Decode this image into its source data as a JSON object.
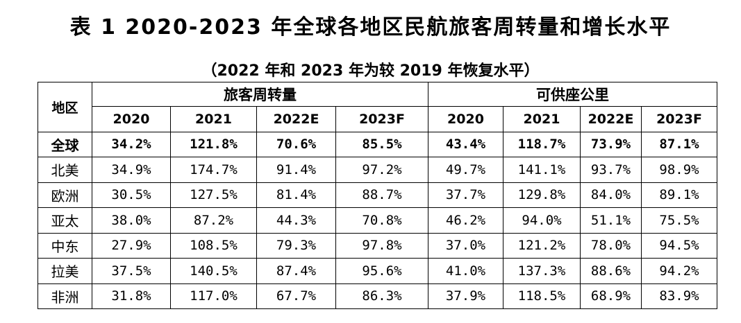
{
  "title": "表 1 2020-2023 年全球各地区民航旅客周转量和增长水平",
  "subtitle": "（2022 年和 2023 年为较 2019 年恢复水平）",
  "table": {
    "region_header": "地区",
    "group1": "旅客周转量",
    "group2": "可供座公里",
    "years": [
      "2020",
      "2021",
      "2022E",
      "2023F",
      "2020",
      "2021",
      "2022E",
      "2023F"
    ],
    "rows": [
      {
        "region": "全球",
        "values": [
          "34.2%",
          "121.8%",
          "70.6%",
          "85.5%",
          "43.4%",
          "118.7%",
          "73.9%",
          "87.1%"
        ],
        "bold": true
      },
      {
        "region": "北美",
        "values": [
          "34.9%",
          "174.7%",
          "91.4%",
          "97.2%",
          "49.7%",
          "141.1%",
          "93.7%",
          "98.9%"
        ]
      },
      {
        "region": "欧洲",
        "values": [
          "30.5%",
          "127.5%",
          "81.4%",
          "88.7%",
          "37.7%",
          "129.8%",
          "84.0%",
          "89.1%"
        ]
      },
      {
        "region": "亚太",
        "values": [
          "38.0%",
          "87.2%",
          "44.3%",
          "70.8%",
          "46.2%",
          "94.0%",
          "51.1%",
          "75.5%"
        ]
      },
      {
        "region": "中东",
        "values": [
          "27.9%",
          "108.5%",
          "79.3%",
          "97.8%",
          "37.0%",
          "121.2%",
          "78.0%",
          "94.5%"
        ]
      },
      {
        "region": "拉美",
        "values": [
          "37.5%",
          "140.5%",
          "87.4%",
          "95.6%",
          "41.0%",
          "137.3%",
          "88.6%",
          "94.2%"
        ]
      },
      {
        "region": "非洲",
        "values": [
          "31.8%",
          "117.0%",
          "67.7%",
          "86.3%",
          "37.9%",
          "118.5%",
          "68.9%",
          "83.9%"
        ]
      }
    ]
  }
}
